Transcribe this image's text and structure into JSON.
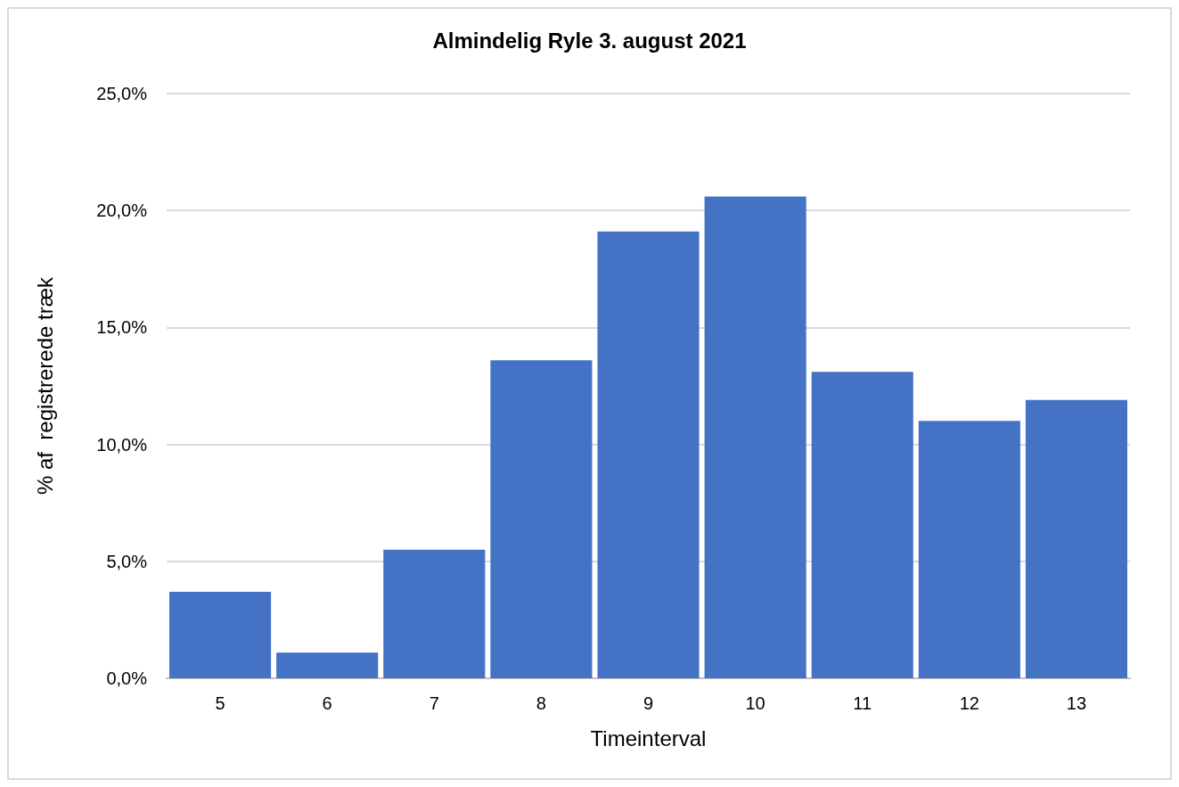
{
  "chart_data": {
    "type": "bar",
    "title": "Almindelig Ryle 3. august 2021",
    "xlabel": "Timeinterval",
    "ylabel": "% af  registrerede træk",
    "categories": [
      "5",
      "6",
      "7",
      "8",
      "9",
      "10",
      "11",
      "12",
      "13"
    ],
    "values": [
      3.7,
      1.1,
      5.5,
      13.6,
      19.1,
      20.6,
      13.1,
      11.0,
      11.9
    ],
    "color": "#4472c4",
    "ylim": [
      0,
      25
    ],
    "yticks": [
      {
        "value": 0,
        "label": "0,0%"
      },
      {
        "value": 5,
        "label": "5,0%"
      },
      {
        "value": 10,
        "label": "10,0%"
      },
      {
        "value": 15,
        "label": "15,0%"
      },
      {
        "value": 20,
        "label": "20,0%"
      },
      {
        "value": 25,
        "label": "25,0%"
      }
    ],
    "grid": "y"
  }
}
